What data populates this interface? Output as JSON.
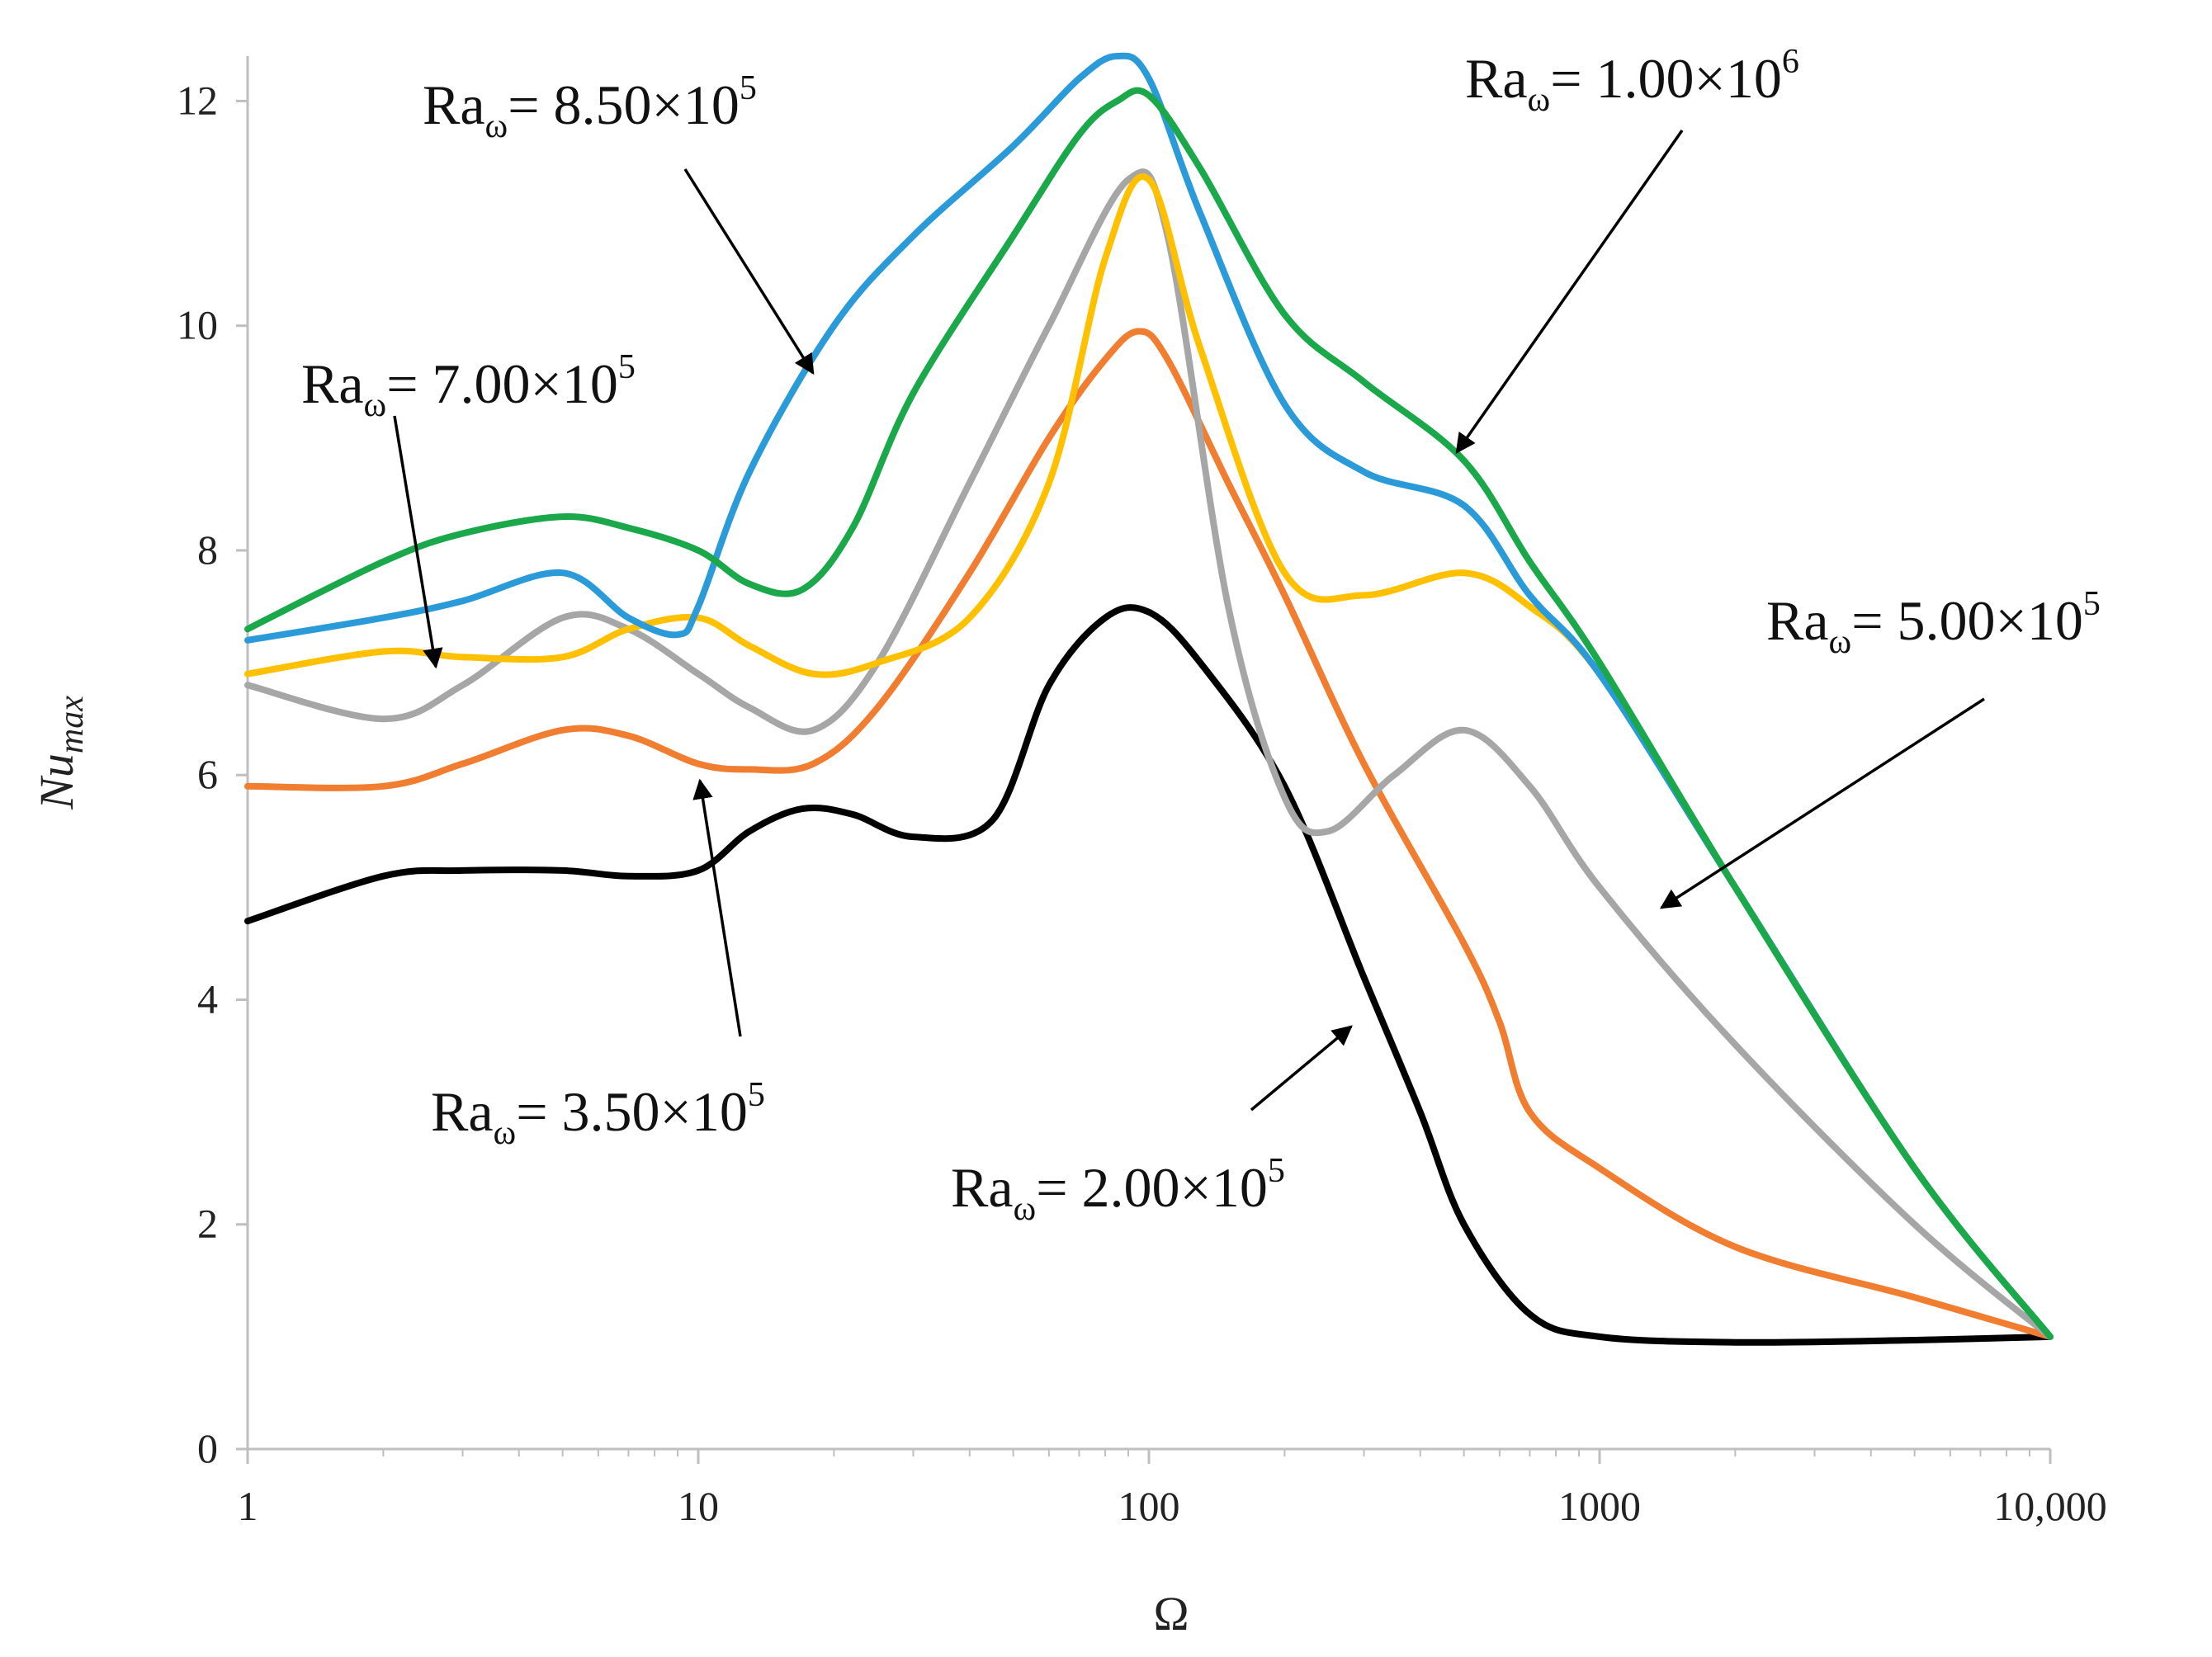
{
  "chart_data": {
    "type": "line",
    "xscale": "log",
    "xlim": [
      1,
      10000
    ],
    "ylim": [
      0,
      12.4
    ],
    "xlabel": "Ω",
    "ylabel_main": "Nu",
    "ylabel_sub": "max",
    "x_ticks": [
      1,
      10,
      100,
      1000,
      10000
    ],
    "x_tick_labels": [
      "1",
      "10",
      "100",
      "1000",
      "10,000"
    ],
    "y_ticks": [
      0,
      2,
      4,
      6,
      8,
      10,
      12
    ],
    "y_tick_labels": [
      "0",
      "2",
      "4",
      "6",
      "8",
      "10",
      "12"
    ],
    "series": [
      {
        "name": "Ra_ω = 1.00×10^6",
        "color": "#1aa84a",
        "x": [
          1,
          2,
          3,
          5,
          7,
          10,
          13,
          17,
          22,
          30,
          50,
          70,
          85,
          100,
          130,
          200,
          300,
          500,
          700,
          1000,
          2000,
          5000,
          10000
        ],
        "y": [
          7.3,
          7.9,
          8.15,
          8.3,
          8.2,
          8.0,
          7.7,
          7.65,
          8.2,
          9.4,
          10.8,
          11.7,
          12.0,
          12.05,
          11.4,
          10.1,
          9.5,
          8.8,
          7.9,
          7.0,
          5.0,
          2.5,
          1.0
        ]
      },
      {
        "name": "Ra_ω = 8.50×10^5",
        "color": "#2a9ad8",
        "x": [
          1,
          2,
          3,
          5,
          7,
          9,
          10,
          13,
          20,
          30,
          50,
          70,
          85,
          100,
          130,
          200,
          300,
          500,
          700,
          1000,
          2000,
          5000,
          10000
        ],
        "y": [
          7.2,
          7.4,
          7.55,
          7.8,
          7.4,
          7.25,
          7.5,
          8.7,
          10.0,
          10.8,
          11.6,
          12.2,
          12.4,
          12.2,
          11.0,
          9.3,
          8.7,
          8.4,
          7.6,
          6.9,
          5.0,
          2.5,
          1.0
        ]
      },
      {
        "name": "Ra_ω = 7.00×10^5",
        "color": "#ffc000",
        "x": [
          1,
          2,
          3,
          5,
          7,
          10,
          13,
          18,
          25,
          40,
          60,
          80,
          100,
          130,
          200,
          300,
          500,
          700,
          1000,
          2000,
          5000,
          10000
        ],
        "y": [
          6.9,
          7.1,
          7.05,
          7.05,
          7.3,
          7.4,
          7.15,
          6.9,
          7.0,
          7.4,
          8.6,
          10.6,
          11.3,
          9.8,
          7.8,
          7.6,
          7.8,
          7.5,
          6.9,
          5.0,
          2.5,
          1.0
        ]
      },
      {
        "name": "Ra_ω = 5.00×10^5",
        "color": "#a6a6a6",
        "x": [
          1,
          2,
          3,
          5,
          7,
          10,
          13,
          18,
          25,
          40,
          60,
          90,
          110,
          150,
          200,
          250,
          350,
          500,
          700,
          1000,
          2000,
          5000,
          10000
        ],
        "y": [
          6.8,
          6.5,
          6.8,
          7.4,
          7.3,
          6.9,
          6.6,
          6.4,
          7.0,
          8.6,
          10.0,
          11.3,
          10.8,
          7.5,
          5.8,
          5.5,
          6.0,
          6.4,
          5.9,
          5.0,
          3.6,
          2.0,
          1.0
        ]
      },
      {
        "name": "Ra_ω = 3.50×10^5",
        "color": "#f07d30",
        "x": [
          1,
          2,
          3,
          5,
          7,
          10,
          13,
          18,
          25,
          40,
          60,
          80,
          95,
          110,
          150,
          200,
          300,
          500,
          600,
          700,
          1000,
          2000,
          5000,
          10000
        ],
        "y": [
          5.9,
          5.9,
          6.1,
          6.4,
          6.35,
          6.1,
          6.05,
          6.1,
          6.6,
          7.8,
          9.0,
          9.7,
          9.95,
          9.7,
          8.6,
          7.6,
          6.1,
          4.5,
          3.8,
          3.0,
          2.5,
          1.8,
          1.35,
          1.0
        ]
      },
      {
        "name": "Ra_ω = 2.00×10^5",
        "color": "#000000",
        "x": [
          1,
          2,
          3,
          5,
          7,
          10,
          13,
          17,
          22,
          30,
          45,
          60,
          80,
          100,
          130,
          200,
          300,
          400,
          500,
          700,
          1000,
          2000,
          5000,
          10000
        ],
        "y": [
          4.7,
          5.1,
          5.15,
          5.15,
          5.1,
          5.15,
          5.5,
          5.7,
          5.65,
          5.45,
          5.6,
          6.8,
          7.4,
          7.45,
          7.0,
          5.9,
          4.2,
          3.0,
          2.0,
          1.2,
          1.0,
          0.95,
          0.97,
          1.0
        ]
      }
    ],
    "annotations": [
      {
        "base": "Ra",
        "sub": "ω",
        "mid": "= 8.50×10",
        "sup": "5"
      },
      {
        "base": "Ra",
        "sub": "ω",
        "mid": "= 1.00×10",
        "sup": "6"
      },
      {
        "base": "Ra",
        "sub": "ω",
        "mid": "= 7.00×10",
        "sup": "5"
      },
      {
        "base": "Ra",
        "sub": "ω",
        "mid": "= 5.00×10",
        "sup": "5"
      },
      {
        "base": "Ra",
        "sub": "ω",
        "mid": "= 3.50×10",
        "sup": "5"
      },
      {
        "base": "Ra",
        "sub": "ω",
        "mid": "= 2.00×10",
        "sup": "5"
      }
    ]
  }
}
